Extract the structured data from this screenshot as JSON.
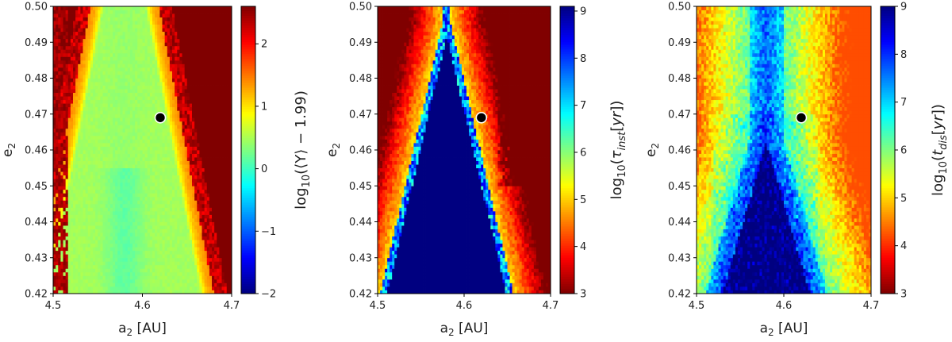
{
  "chart_data": [
    {
      "type": "heatmap",
      "xlabel_base": "a",
      "xlabel_sub": "2",
      "xlabel_rest": " [AU]",
      "ylabel_base": "e",
      "ylabel_sub": "2",
      "xlim": [
        4.5,
        4.7
      ],
      "ylim": [
        0.42,
        0.5
      ],
      "x_ticks": [
        "4.5",
        "4.6",
        "4.7"
      ],
      "y_ticks": [
        "0.42",
        "0.43",
        "0.44",
        "0.45",
        "0.46",
        "0.47",
        "0.48",
        "0.49",
        "0.50"
      ],
      "colorbar": {
        "label_parts": [
          [
            "log",
            "n"
          ],
          [
            "10",
            "sub"
          ],
          [
            "(⟨Y⟩ − 1.99)",
            "n"
          ]
        ],
        "range": [
          -2,
          2.6
        ],
        "reversed": false,
        "ticks": [
          "−2",
          "−1",
          "0",
          "1",
          "2"
        ],
        "tick_values": [
          -2,
          -1,
          0,
          1,
          2
        ]
      },
      "marker": {
        "x": 4.62,
        "y": 0.469
      },
      "field": {
        "kind": "megno",
        "center_x": 4.58,
        "apex_y": 0.53,
        "halfwidth_bottom": 0.085,
        "min_value": 0.4,
        "max_value": 2.6
      },
      "colormap": "jet"
    },
    {
      "type": "heatmap",
      "xlabel_base": "a",
      "xlabel_sub": "2",
      "xlabel_rest": " [AU]",
      "ylabel_base": "e",
      "ylabel_sub": "2",
      "xlim": [
        4.5,
        4.7
      ],
      "ylim": [
        0.42,
        0.5
      ],
      "x_ticks": [
        "4.5",
        "4.6",
        "4.7"
      ],
      "y_ticks": [
        "0.42",
        "0.43",
        "0.44",
        "0.45",
        "0.46",
        "0.47",
        "0.48",
        "0.49",
        "0.50"
      ],
      "colorbar": {
        "label_parts": [
          [
            "log",
            "n"
          ],
          [
            "10",
            "sub"
          ],
          [
            "(",
            "n"
          ],
          [
            "τ",
            "i"
          ],
          [
            "inst",
            "isub"
          ],
          [
            "[",
            "n"
          ],
          [
            "yr",
            "i"
          ],
          [
            "])",
            "n"
          ]
        ],
        "range": [
          3,
          9.1
        ],
        "reversed": true,
        "ticks": [
          "3",
          "4",
          "5",
          "6",
          "7",
          "8",
          "9"
        ],
        "tick_values": [
          3,
          4,
          5,
          6,
          7,
          8,
          9
        ]
      },
      "marker": {
        "x": 4.62,
        "y": 0.469
      },
      "field": {
        "kind": "instability",
        "center_x": 4.58,
        "apex_y": 0.496,
        "halfwidth_bottom": 0.073,
        "min_value": 3.0,
        "max_value": 9.1
      },
      "colormap": "jet_r"
    },
    {
      "type": "heatmap",
      "xlabel_base": "a",
      "xlabel_sub": "2",
      "xlabel_rest": " [AU]",
      "ylabel_base": "e",
      "ylabel_sub": "2",
      "xlim": [
        4.5,
        4.7
      ],
      "ylim": [
        0.42,
        0.5
      ],
      "x_ticks": [
        "4.5",
        "4.6",
        "4.7"
      ],
      "y_ticks": [
        "0.42",
        "0.43",
        "0.44",
        "0.45",
        "0.46",
        "0.47",
        "0.48",
        "0.49",
        "0.50"
      ],
      "colorbar": {
        "label_parts": [
          [
            "log",
            "n"
          ],
          [
            "10",
            "sub"
          ],
          [
            "(",
            "n"
          ],
          [
            "t",
            "i"
          ],
          [
            "dis",
            "isub"
          ],
          [
            "[",
            "n"
          ],
          [
            "yr",
            "i"
          ],
          [
            "])",
            "n"
          ]
        ],
        "range": [
          3,
          9
        ],
        "reversed": true,
        "ticks": [
          "3",
          "4",
          "5",
          "6",
          "7",
          "8",
          "9"
        ],
        "tick_values": [
          3,
          4,
          5,
          6,
          7,
          8,
          9
        ]
      },
      "marker": {
        "x": 4.62,
        "y": 0.469
      },
      "field": {
        "kind": "dispersion",
        "center_x": 4.58,
        "apex_y": 0.462,
        "halfwidth_bottom": 0.05,
        "min_value": 4.2,
        "max_value": 9.0
      },
      "colormap": "jet_r"
    }
  ]
}
